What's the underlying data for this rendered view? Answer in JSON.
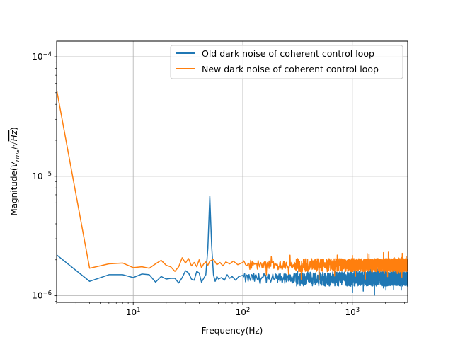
{
  "chart_data": {
    "type": "line",
    "title": "",
    "xlabel": "Frequency(Hz)",
    "ylabel": "Magnitude(V_rms/√Hz)",
    "xscale": "log",
    "yscale": "log",
    "xlim": [
      2,
      3200
    ],
    "ylim": [
      8.8e-07,
      0.000135
    ],
    "grid": true,
    "legend_position": "top-right",
    "x_ticks": [
      {
        "value": 10,
        "base": "10",
        "exp": "1"
      },
      {
        "value": 100,
        "base": "10",
        "exp": "2"
      },
      {
        "value": 1000,
        "base": "10",
        "exp": "3"
      }
    ],
    "y_ticks": [
      {
        "value": 1e-06,
        "base": "10",
        "exp": "−6"
      },
      {
        "value": 1e-05,
        "base": "10",
        "exp": "−5"
      },
      {
        "value": 0.0001,
        "base": "10",
        "exp": "−4"
      }
    ],
    "series": [
      {
        "name": "Old dark noise of coherent control loop",
        "color": "#1f77b4",
        "baseline": 1.4e-06,
        "noise": 0.1,
        "points": [
          [
            2,
            2.2e-06
          ],
          [
            4,
            1.32e-06
          ],
          [
            6,
            1.5e-06
          ],
          [
            8,
            1.5e-06
          ],
          [
            10,
            1.42e-06
          ],
          [
            12,
            1.52e-06
          ],
          [
            14,
            1.5e-06
          ],
          [
            16,
            1.3e-06
          ],
          [
            18,
            1.45e-06
          ],
          [
            20,
            1.38e-06
          ],
          [
            22,
            1.4e-06
          ],
          [
            24,
            1.4e-06
          ],
          [
            26,
            1.28e-06
          ],
          [
            28,
            1.42e-06
          ],
          [
            30,
            1.62e-06
          ],
          [
            32,
            1.55e-06
          ],
          [
            34,
            1.38e-06
          ],
          [
            36,
            1.35e-06
          ],
          [
            38,
            1.6e-06
          ],
          [
            40,
            1.55e-06
          ],
          [
            42,
            1.3e-06
          ],
          [
            44,
            1.4e-06
          ],
          [
            46,
            1.5e-06
          ],
          [
            48,
            2.5e-06
          ],
          [
            50,
            6.8e-06
          ],
          [
            52,
            2.6e-06
          ],
          [
            54,
            1.5e-06
          ],
          [
            56,
            1.32e-06
          ],
          [
            58,
            1.45e-06
          ],
          [
            60,
            1.38e-06
          ],
          [
            64,
            1.42e-06
          ],
          [
            68,
            1.35e-06
          ],
          [
            72,
            1.5e-06
          ],
          [
            76,
            1.4e-06
          ],
          [
            80,
            1.45e-06
          ],
          [
            86,
            1.35e-06
          ],
          [
            92,
            1.45e-06
          ],
          [
            100,
            1.48e-06
          ]
        ]
      },
      {
        "name": "New dark noise of coherent control loop",
        "color": "#ff7f0e",
        "baseline": 1.82e-06,
        "noise": 0.09,
        "points": [
          [
            2,
            5.3e-05
          ],
          [
            4,
            1.7e-06
          ],
          [
            6,
            1.85e-06
          ],
          [
            8,
            1.88e-06
          ],
          [
            10,
            1.72e-06
          ],
          [
            12,
            1.75e-06
          ],
          [
            14,
            1.7e-06
          ],
          [
            16,
            1.85e-06
          ],
          [
            18,
            1.98e-06
          ],
          [
            20,
            1.8e-06
          ],
          [
            22,
            1.75e-06
          ],
          [
            24,
            1.6e-06
          ],
          [
            26,
            1.75e-06
          ],
          [
            28,
            2.08e-06
          ],
          [
            30,
            1.88e-06
          ],
          [
            32,
            2.05e-06
          ],
          [
            34,
            1.78e-06
          ],
          [
            36,
            1.9e-06
          ],
          [
            38,
            1.75e-06
          ],
          [
            40,
            2e-06
          ],
          [
            42,
            1.72e-06
          ],
          [
            44,
            1.85e-06
          ],
          [
            46,
            1.92e-06
          ],
          [
            48,
            1.8e-06
          ],
          [
            50,
            1.95e-06
          ],
          [
            54,
            2.02e-06
          ],
          [
            58,
            1.82e-06
          ],
          [
            62,
            1.9e-06
          ],
          [
            66,
            1.78e-06
          ],
          [
            70,
            1.92e-06
          ],
          [
            76,
            1.85e-06
          ],
          [
            82,
            1.95e-06
          ],
          [
            90,
            1.82e-06
          ],
          [
            100,
            1.9e-06
          ]
        ]
      }
    ]
  }
}
